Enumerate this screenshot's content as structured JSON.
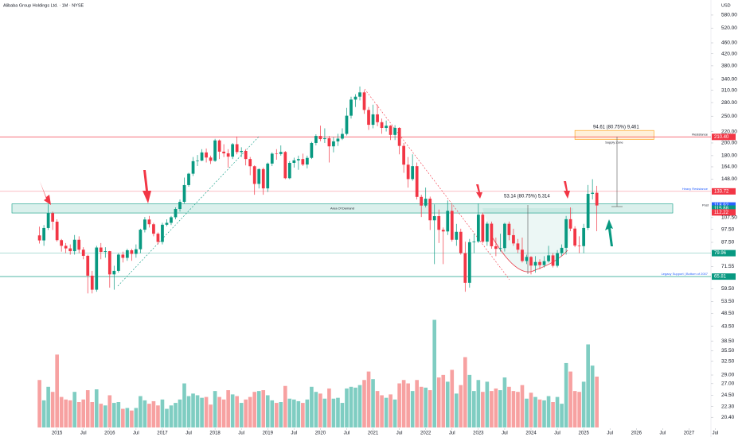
{
  "chart_data": {
    "type": "candlestick",
    "title": "Alibaba Group Holdings Ltd. · 1M · NYSE",
    "currency": "USD",
    "log_scale": true,
    "up_color": "#089981",
    "down_color": "#f23645",
    "volume_up_color": "#7fcdc2",
    "volume_down_color": "#f7a1a1",
    "x": [
      "2014-09",
      "2014-10",
      "2014-11",
      "2014-12",
      "2015-01",
      "2015-02",
      "2015-03",
      "2015-04",
      "2015-05",
      "2015-06",
      "2015-07",
      "2015-08",
      "2015-09",
      "2015-10",
      "2015-11",
      "2015-12",
      "2016-01",
      "2016-02",
      "2016-03",
      "2016-04",
      "2016-05",
      "2016-06",
      "2016-07",
      "2016-08",
      "2016-09",
      "2016-10",
      "2016-11",
      "2016-12",
      "2017-01",
      "2017-02",
      "2017-03",
      "2017-04",
      "2017-05",
      "2017-06",
      "2017-07",
      "2017-08",
      "2017-09",
      "2017-10",
      "2017-11",
      "2017-12",
      "2018-01",
      "2018-02",
      "2018-03",
      "2018-04",
      "2018-05",
      "2018-06",
      "2018-07",
      "2018-08",
      "2018-09",
      "2018-10",
      "2018-11",
      "2018-12",
      "2019-01",
      "2019-02",
      "2019-03",
      "2019-04",
      "2019-05",
      "2019-06",
      "2019-07",
      "2019-08",
      "2019-09",
      "2019-10",
      "2019-11",
      "2019-12",
      "2020-01",
      "2020-02",
      "2020-03",
      "2020-04",
      "2020-05",
      "2020-06",
      "2020-07",
      "2020-08",
      "2020-09",
      "2020-10",
      "2020-11",
      "2020-12",
      "2021-01",
      "2021-02",
      "2021-03",
      "2021-04",
      "2021-05",
      "2021-06",
      "2021-07",
      "2021-08",
      "2021-09",
      "2021-10",
      "2021-11",
      "2021-12",
      "2022-01",
      "2022-02",
      "2022-03",
      "2022-04",
      "2022-05",
      "2022-06",
      "2022-07",
      "2022-08",
      "2022-09",
      "2022-10",
      "2022-11",
      "2022-12",
      "2023-01",
      "2023-02",
      "2023-03",
      "2023-04",
      "2023-05",
      "2023-06",
      "2023-07",
      "2023-08",
      "2023-09",
      "2023-10",
      "2023-11",
      "2023-12",
      "2024-01",
      "2024-02",
      "2024-03",
      "2024-04",
      "2024-05",
      "2024-06",
      "2024-07",
      "2024-08",
      "2024-09",
      "2024-10",
      "2024-11",
      "2024-12",
      "2025-01",
      "2025-02",
      "2025-03",
      "2025-04"
    ],
    "candles": [
      [
        92.7,
        99.7,
        86.6,
        88.9
      ],
      [
        88.9,
        101,
        85,
        98.6
      ],
      [
        98.6,
        120,
        97,
        111.6
      ],
      [
        111.6,
        113,
        97,
        103.9
      ],
      [
        103.9,
        106,
        88,
        89.1
      ],
      [
        89.1,
        90,
        81,
        85
      ],
      [
        85,
        87,
        80,
        83.2
      ],
      [
        83.2,
        86,
        79,
        81.3
      ],
      [
        81.3,
        93,
        79,
        89.4
      ],
      [
        89.4,
        92,
        80,
        82.3
      ],
      [
        82.3,
        84,
        76,
        78.2
      ],
      [
        78.2,
        79,
        57.2,
        66.3
      ],
      [
        66.3,
        69,
        57.2,
        59
      ],
      [
        59,
        85,
        58,
        83.8
      ],
      [
        83.8,
        87,
        76,
        80.8
      ],
      [
        80.8,
        84,
        77,
        81.3
      ],
      [
        81.3,
        81.5,
        60,
        67
      ],
      [
        67,
        72,
        59,
        69
      ],
      [
        69,
        80,
        68,
        79
      ],
      [
        79,
        81,
        74,
        76.9
      ],
      [
        76.9,
        83,
        75,
        81.9
      ],
      [
        81.9,
        83,
        75,
        79.5
      ],
      [
        79.5,
        86,
        77,
        82.6
      ],
      [
        82.6,
        98,
        80,
        97.2
      ],
      [
        97.2,
        108,
        95,
        105.8
      ],
      [
        105.8,
        109,
        99,
        101.7
      ],
      [
        101.7,
        103,
        92,
        94
      ],
      [
        94,
        95,
        86,
        87.8
      ],
      [
        87.8,
        103,
        86,
        101.3
      ],
      [
        101.3,
        106,
        100,
        102.9
      ],
      [
        102.9,
        109,
        101,
        107.8
      ],
      [
        107.8,
        117,
        106,
        115.5
      ],
      [
        115.5,
        125,
        113,
        122.5
      ],
      [
        122.5,
        150,
        121,
        140.9
      ],
      [
        140.9,
        156,
        139,
        154.9
      ],
      [
        154.9,
        178,
        152,
        171.9
      ],
      [
        171.9,
        181,
        165,
        172.7
      ],
      [
        172.7,
        190,
        172,
        184.9
      ],
      [
        184.9,
        191,
        170,
        177.2
      ],
      [
        177.2,
        180,
        168,
        172.4
      ],
      [
        172.4,
        207,
        171,
        204.3
      ],
      [
        204.3,
        206,
        175,
        186.1
      ],
      [
        186.1,
        198,
        178,
        183.5
      ],
      [
        183.5,
        190,
        163,
        178.5
      ],
      [
        178.5,
        200,
        175,
        198
      ],
      [
        198,
        211,
        182,
        185.5
      ],
      [
        185.5,
        193,
        178,
        187.2
      ],
      [
        187.2,
        190,
        166,
        175
      ],
      [
        175,
        178,
        153,
        164.8
      ],
      [
        164.8,
        166,
        130,
        142.3
      ],
      [
        142.3,
        162,
        137,
        160.9
      ],
      [
        160.9,
        163,
        130,
        137.1
      ],
      [
        137.1,
        170,
        133,
        168.5
      ],
      [
        168.5,
        185,
        165,
        183
      ],
      [
        183,
        190,
        174,
        182.5
      ],
      [
        182.5,
        196,
        180,
        185.6
      ],
      [
        185.6,
        187,
        148,
        149.2
      ],
      [
        149.2,
        172,
        148,
        169.5
      ],
      [
        169.5,
        177,
        163,
        173.1
      ],
      [
        173.1,
        180,
        160,
        175
      ],
      [
        175,
        183,
        165,
        167.2
      ],
      [
        167.2,
        180,
        162,
        176.7
      ],
      [
        176.7,
        202,
        175,
        200
      ],
      [
        200,
        215,
        196,
        212.1
      ],
      [
        212.1,
        231,
        203,
        206.6
      ],
      [
        206.6,
        226,
        200,
        208
      ],
      [
        208,
        212,
        170,
        194.5
      ],
      [
        194.5,
        210,
        185,
        202.7
      ],
      [
        202.7,
        216,
        195,
        207.4
      ],
      [
        207.4,
        226,
        205,
        215.7
      ],
      [
        215.7,
        268,
        213,
        251
      ],
      [
        251,
        294,
        245,
        287
      ],
      [
        287,
        300,
        270,
        294
      ],
      [
        294,
        320,
        285,
        304.7
      ],
      [
        304.7,
        310,
        255,
        263.3
      ],
      [
        263.3,
        270,
        223,
        232.7
      ],
      [
        232.7,
        275,
        226,
        253.8
      ],
      [
        253.8,
        275,
        230,
        237.8
      ],
      [
        237.8,
        245,
        216,
        226.7
      ],
      [
        226.7,
        241,
        220,
        230.9
      ],
      [
        230.9,
        232,
        205,
        213.9
      ],
      [
        213.9,
        232,
        205,
        226.8
      ],
      [
        226.8,
        228,
        182,
        195.2
      ],
      [
        195.2,
        200,
        156,
        167
      ],
      [
        167,
        178,
        138,
        148.1
      ],
      [
        148.1,
        182,
        146,
        164.9
      ],
      [
        164.9,
        170,
        125,
        127.7
      ],
      [
        127.7,
        130,
        108,
        118.8
      ],
      [
        118.8,
        138,
        117,
        125.8
      ],
      [
        125.8,
        128,
        97,
        105.1
      ],
      [
        105.1,
        120,
        73,
        108.8
      ],
      [
        108.8,
        115,
        87,
        97.1
      ],
      [
        97.1,
        99,
        73,
        95.8
      ],
      [
        95.8,
        124,
        93,
        113.7
      ],
      [
        113.7,
        120,
        88,
        89.4
      ],
      [
        89.4,
        102,
        85,
        95.5
      ],
      [
        95.5,
        98,
        79,
        80
      ],
      [
        80,
        88,
        58,
        62.5
      ],
      [
        62.5,
        90,
        60,
        87.6
      ],
      [
        87.6,
        94,
        80,
        88.1
      ],
      [
        88.1,
        121,
        87,
        110.2
      ],
      [
        110.2,
        112,
        87,
        88
      ],
      [
        88,
        104,
        85,
        102.2
      ],
      [
        102.2,
        104,
        83,
        84.7
      ],
      [
        84.7,
        91,
        78,
        82.9
      ],
      [
        82.9,
        94,
        81,
        83.4
      ],
      [
        83.4,
        103,
        81,
        102.1
      ],
      [
        102.1,
        104,
        89,
        92.9
      ],
      [
        92.9,
        98,
        85,
        86.7
      ],
      [
        86.7,
        90,
        80,
        82.3
      ],
      [
        82.3,
        91,
        74,
        74.9
      ],
      [
        74.9,
        79,
        73,
        77.5
      ],
      [
        77.5,
        78,
        67,
        72.1
      ],
      [
        72.1,
        78,
        68,
        74.3
      ],
      [
        74.3,
        76,
        70,
        72.4
      ],
      [
        72.4,
        78,
        71,
        74.8
      ],
      [
        74.8,
        85,
        74,
        78.5
      ],
      [
        78.5,
        80,
        71,
        72
      ],
      [
        72,
        82,
        71,
        80
      ],
      [
        80,
        86,
        78,
        83.6
      ],
      [
        83.6,
        109,
        79,
        106.1
      ],
      [
        106.1,
        117,
        96,
        98.1
      ],
      [
        98.1,
        100,
        84,
        85.2
      ],
      [
        85.2,
        92,
        80,
        84.8
      ],
      [
        84.8,
        102,
        80,
        98.6
      ],
      [
        98.6,
        141,
        97,
        131
      ],
      [
        131,
        148,
        125,
        132.2
      ],
      [
        132.2,
        140,
        96,
        118.92
      ]
    ],
    "volume": [
      560,
      320,
      480,
      420,
      860,
      360,
      330,
      320,
      420,
      300,
      330,
      440,
      300,
      450,
      280,
      260,
      380,
      290,
      300,
      220,
      230,
      200,
      230,
      370,
      320,
      280,
      310,
      260,
      330,
      220,
      260,
      290,
      330,
      520,
      370,
      400,
      380,
      350,
      360,
      270,
      430,
      360,
      330,
      440,
      390,
      370,
      290,
      330,
      360,
      420,
      430,
      440,
      380,
      320,
      290,
      300,
      490,
      340,
      330,
      310,
      290,
      330,
      480,
      420,
      400,
      340,
      460,
      340,
      350,
      290,
      460,
      480,
      470,
      500,
      560,
      660,
      570,
      430,
      380,
      350,
      390,
      330,
      520,
      560,
      520,
      430,
      560,
      480,
      470,
      440,
      1270,
      590,
      620,
      540,
      680,
      400,
      500,
      830,
      620,
      430,
      560,
      420,
      540,
      430,
      460,
      440,
      590,
      480,
      430,
      420,
      500,
      340,
      410,
      360,
      330,
      320,
      370,
      300,
      360,
      280,
      760,
      660,
      430,
      420,
      540,
      980,
      730,
      600
    ],
    "vlim": [
      0,
      1500
    ],
    "xlim": [
      "2013-12",
      "2027-06"
    ],
    "xticks": [
      {
        "value": "2015-01",
        "label": "2015"
      },
      {
        "value": "2015-07",
        "label": "Jul"
      },
      {
        "value": "2016-01",
        "label": "2016"
      },
      {
        "value": "2016-07",
        "label": "Jul"
      },
      {
        "value": "2017-01",
        "label": "2017"
      },
      {
        "value": "2017-07",
        "label": "Jul"
      },
      {
        "value": "2018-01",
        "label": "2018"
      },
      {
        "value": "2018-07",
        "label": "Jul"
      },
      {
        "value": "2019-01",
        "label": "2019"
      },
      {
        "value": "2019-07",
        "label": "Jul"
      },
      {
        "value": "2020-01",
        "label": "2020"
      },
      {
        "value": "2020-07",
        "label": "Jul"
      },
      {
        "value": "2021-01",
        "label": "2021"
      },
      {
        "value": "2021-07",
        "label": "Jul"
      },
      {
        "value": "2022-01",
        "label": "2022"
      },
      {
        "value": "2022-07",
        "label": "Jul"
      },
      {
        "value": "2023-01",
        "label": "2023"
      },
      {
        "value": "2023-07",
        "label": "Jul"
      },
      {
        "value": "2024-01",
        "label": "2024"
      },
      {
        "value": "2024-07",
        "label": "Jul"
      },
      {
        "value": "2025-01",
        "label": "2025"
      },
      {
        "value": "2025-07",
        "label": "Jul"
      },
      {
        "value": "2026-01",
        "label": "2026"
      },
      {
        "value": "2026-07",
        "label": "Jul"
      },
      {
        "value": "2027-01",
        "label": "2027"
      },
      {
        "value": "2027-07",
        "label": "Jul"
      }
    ],
    "ylim": [
      18.5,
      636
    ],
    "yticks": [
      {
        "value": 580,
        "label": "580.00"
      },
      {
        "value": 520,
        "label": "520.00"
      },
      {
        "value": 460,
        "label": "460.00"
      },
      {
        "value": 420,
        "label": "420.00"
      },
      {
        "value": 380,
        "label": "380.00"
      },
      {
        "value": 340,
        "label": "340.00"
      },
      {
        "value": 310,
        "label": "310.00"
      },
      {
        "value": 280,
        "label": "280.00"
      },
      {
        "value": 250,
        "label": "250.00"
      },
      {
        "value": 220,
        "label": "220.00"
      },
      {
        "value": 200,
        "label": "200.00"
      },
      {
        "value": 180,
        "label": "180.00"
      },
      {
        "value": 164,
        "label": "164.00"
      },
      {
        "value": 148,
        "label": "148.00"
      },
      {
        "value": 107.5,
        "label": "107.50"
      },
      {
        "value": 97.5,
        "label": "97.50"
      },
      {
        "value": 87.5,
        "label": "87.50"
      },
      {
        "value": 71.55,
        "label": "71.55"
      },
      {
        "value": 59.5,
        "label": "59.50"
      },
      {
        "value": 53.5,
        "label": "53.50"
      },
      {
        "value": 48.5,
        "label": "48.50"
      },
      {
        "value": 43.5,
        "label": "43.50"
      },
      {
        "value": 38.5,
        "label": "38.50"
      },
      {
        "value": 35.5,
        "label": "35.50"
      },
      {
        "value": 32.5,
        "label": "32.50"
      },
      {
        "value": 29,
        "label": "29.00"
      },
      {
        "value": 27,
        "label": "27.00"
      },
      {
        "value": 24.5,
        "label": "24.50"
      },
      {
        "value": 22.3,
        "label": "22.30"
      },
      {
        "value": 20.4,
        "label": "20.40"
      }
    ],
    "levels": [
      {
        "value": 210.4,
        "label": "210.40",
        "color": "#f23645",
        "line": true,
        "name": "Resistance"
      },
      {
        "value": 133.72,
        "label": "133.72",
        "color": "#f23645",
        "line": true,
        "name": "Heavy Resistance"
      },
      {
        "value": 118.92,
        "label": "118.92",
        "color": "#2962ff",
        "line": false,
        "name": "Post"
      },
      {
        "value": 115.88,
        "label": "115.88",
        "color": "#089981",
        "line": false
      },
      {
        "value": 112.22,
        "label": "112.22",
        "color": "#f23645",
        "line": false
      },
      {
        "value": 79.96,
        "label": "79.96",
        "color": "#089981",
        "line": true
      },
      {
        "value": 65.81,
        "label": "65.81",
        "color": "#089981",
        "line": true,
        "name": "Legacy Support | Bottom of 2007"
      }
    ],
    "demand_zone": {
      "range": [
        111.7,
        120.5
      ],
      "label": "Area Of Demand"
    },
    "supply_zone": {
      "range": [
        206,
        222
      ],
      "x": [
        "2024-11",
        "2026-05"
      ],
      "label": "Supply Zone"
    },
    "annotations": [
      "94.61 (80.75%) 9,461",
      "53.14 (80.75%) 5,314"
    ]
  }
}
